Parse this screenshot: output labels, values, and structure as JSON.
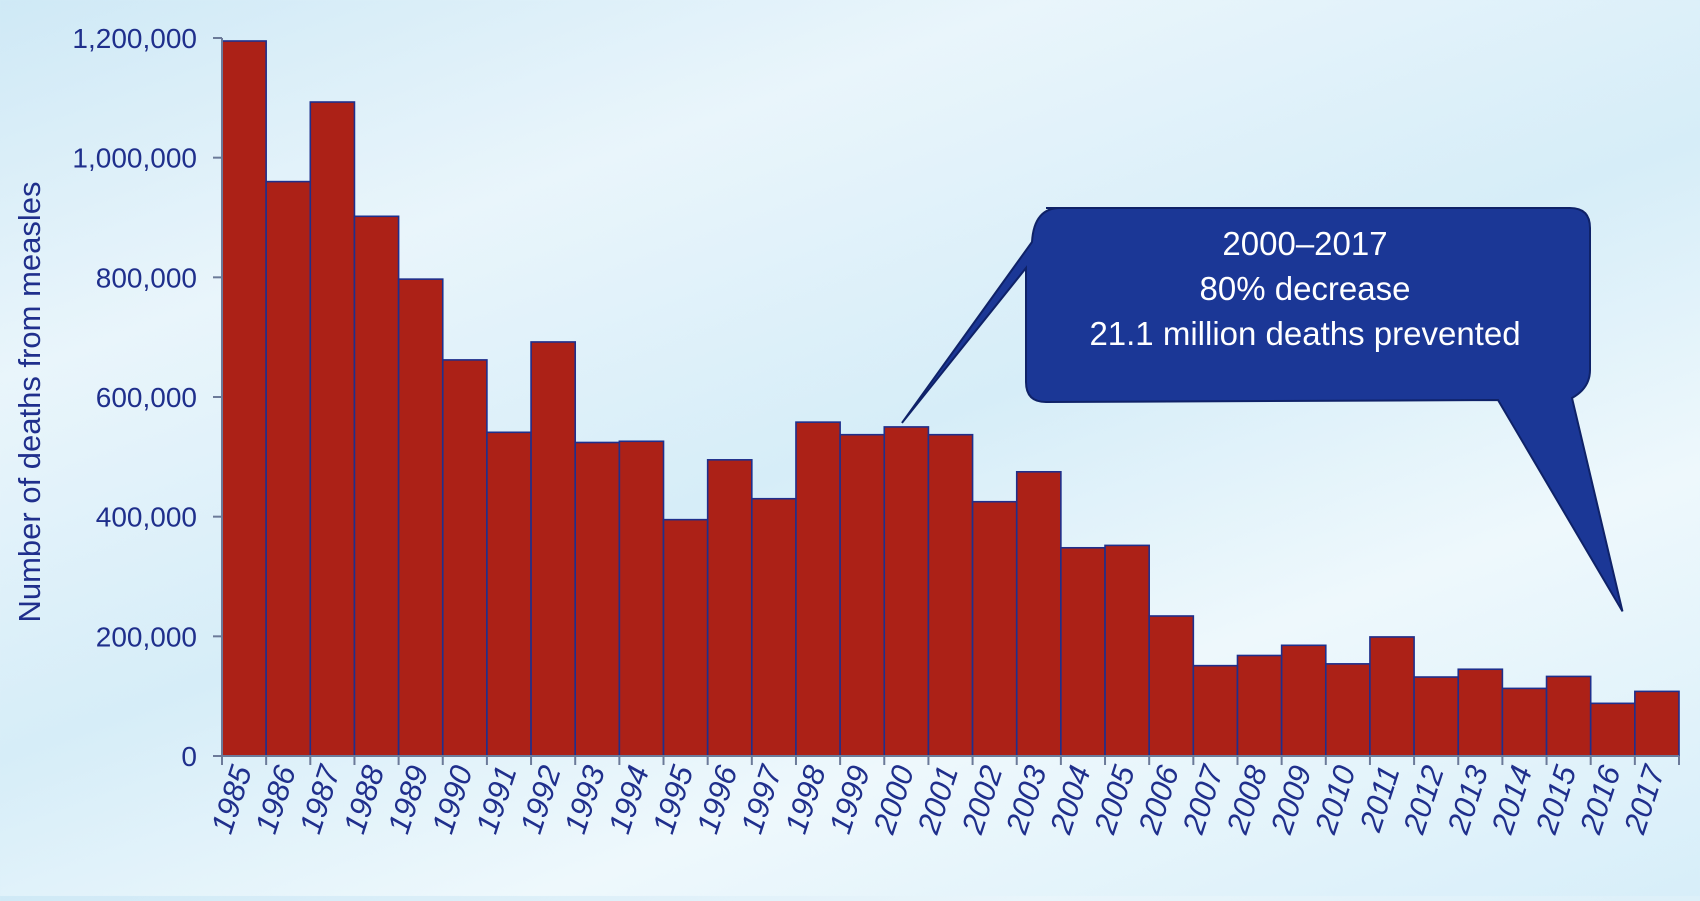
{
  "chart_data": {
    "type": "bar",
    "title": "",
    "xlabel": "",
    "ylabel": "Number of deaths from measles",
    "ylim": [
      0,
      1200000
    ],
    "yticks": [
      0,
      200000,
      400000,
      600000,
      800000,
      1000000,
      1200000
    ],
    "ytick_labels": [
      "0",
      "200,000",
      "400,000",
      "600,000",
      "800,000",
      "1,000,000",
      "1,200,000"
    ],
    "grid": false,
    "categories": [
      "1985",
      "1986",
      "1987",
      "1988",
      "1989",
      "1990",
      "1991",
      "1992",
      "1993",
      "1994",
      "1995",
      "1996",
      "1997",
      "1998",
      "1999",
      "2000",
      "2001",
      "2002",
      "2003",
      "2004",
      "2005",
      "2006",
      "2007",
      "2008",
      "2009",
      "2010",
      "2011",
      "2012",
      "2013",
      "2014",
      "2015",
      "2016",
      "2017"
    ],
    "values": [
      1195000,
      960000,
      1093000,
      902000,
      797000,
      662000,
      541000,
      692000,
      524000,
      526000,
      395000,
      495000,
      430000,
      558000,
      537000,
      550000,
      537000,
      425000,
      475000,
      348000,
      352000,
      234000,
      151000,
      168000,
      185000,
      154000,
      199000,
      132000,
      145000,
      113000,
      133000,
      88000,
      108000
    ],
    "bar_color": "#ac2117",
    "bar_edge_color": "#1f2f8c",
    "annotations": [
      {
        "lines": [
          "2000–2017",
          "80% decrease",
          "21.1 million deaths prevented"
        ],
        "from_category": "2000",
        "to_category": "2016",
        "fill": "#1b3796"
      }
    ]
  }
}
